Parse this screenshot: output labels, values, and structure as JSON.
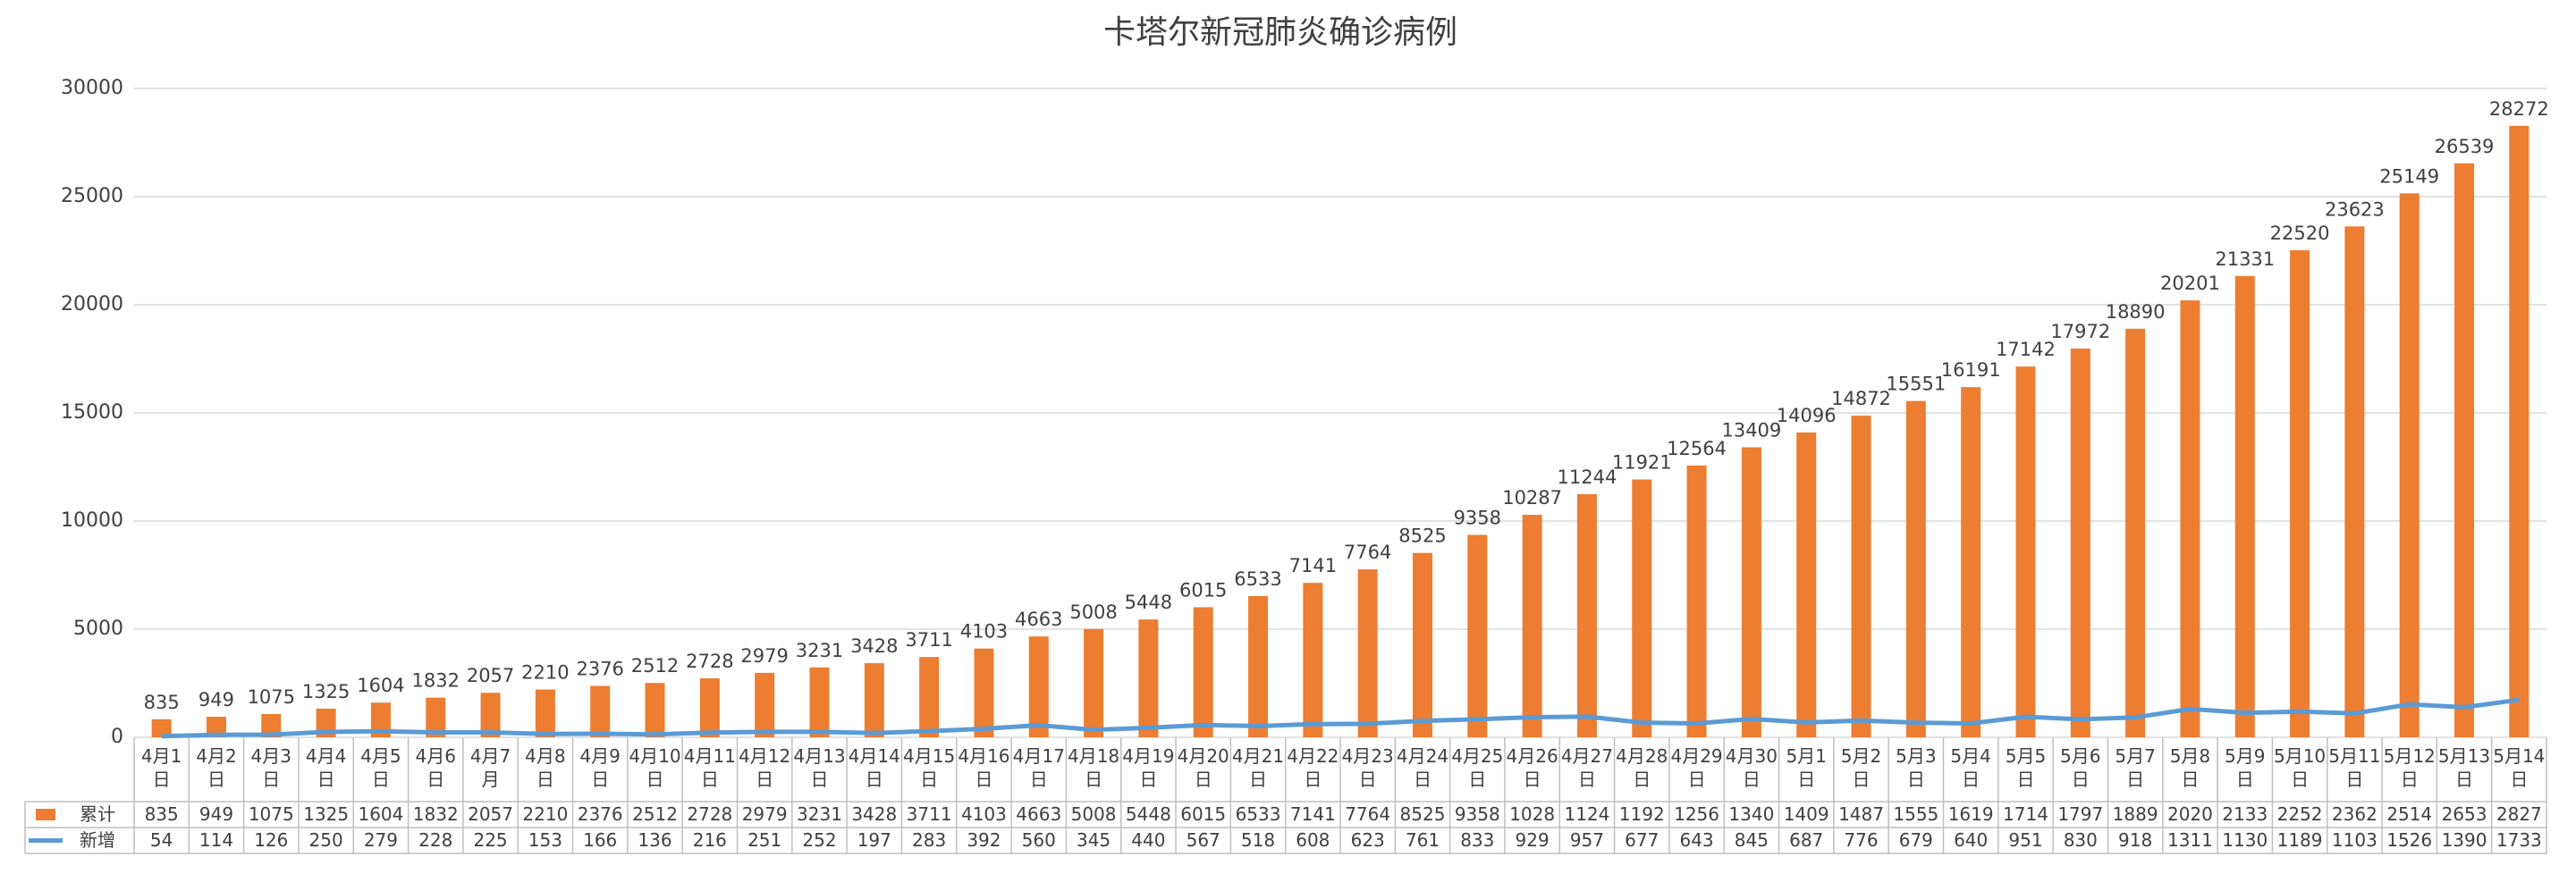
{
  "chart_data": {
    "type": "bar-line-table",
    "title": "卡塔尔新冠肺炎确诊病例",
    "categories": [
      "4月1日",
      "4月2日",
      "4月3日",
      "4月4日",
      "4月5日",
      "4月6日",
      "4月7月",
      "4月8日",
      "4月9日",
      "4月10日",
      "4月11日",
      "4月12日",
      "4月13日",
      "4月14日",
      "4月15日",
      "4月16日",
      "4月17日",
      "4月18日",
      "4月19日",
      "4月20日",
      "4月21日",
      "4月22日",
      "4月23日",
      "4月24日",
      "4月25日",
      "4月26日",
      "4月27日",
      "4月28日",
      "4月29日",
      "4月30日",
      "5月1日",
      "5月2日",
      "5月3日",
      "5月4日",
      "5月5日",
      "5月6日",
      "5月7日",
      "5月8日",
      "5月9日",
      "5月10日",
      "5月11日",
      "5月12日",
      "5月13日",
      "5月14日"
    ],
    "series": [
      {
        "name": "累计",
        "type": "bar",
        "color": "#ED7D31",
        "values": [
          835,
          949,
          1075,
          1325,
          1604,
          1832,
          2057,
          2210,
          2376,
          2512,
          2728,
          2979,
          3231,
          3428,
          3711,
          4103,
          4663,
          5008,
          5448,
          6015,
          6533,
          7141,
          7764,
          8525,
          9358,
          10287,
          11244,
          11921,
          12564,
          13409,
          14096,
          14872,
          15551,
          16191,
          17142,
          17972,
          18890,
          20201,
          21331,
          22520,
          23623,
          25149,
          26539,
          28272
        ]
      },
      {
        "name": "新增",
        "type": "line",
        "color": "#5B9BD5",
        "values": [
          54,
          114,
          126,
          250,
          279,
          228,
          225,
          153,
          166,
          136,
          216,
          251,
          252,
          197,
          283,
          392,
          560,
          345,
          440,
          567,
          518,
          608,
          623,
          761,
          833,
          929,
          957,
          677,
          643,
          845,
          687,
          776,
          679,
          640,
          951,
          830,
          918,
          1311,
          1130,
          1189,
          1103,
          1526,
          1390,
          1733
        ]
      }
    ],
    "ylim": [
      0,
      30000
    ],
    "yticks": [
      0,
      5000,
      10000,
      15000,
      20000,
      25000,
      30000
    ],
    "grid": true,
    "data_labels_series": 0
  }
}
